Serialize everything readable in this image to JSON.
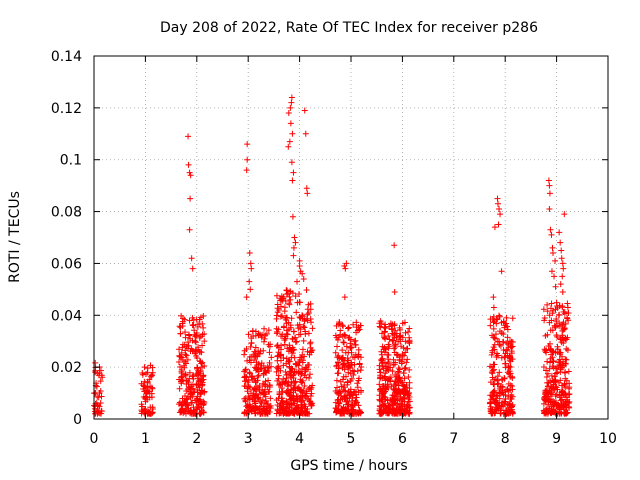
{
  "chart_data": {
    "type": "scatter",
    "title": "Day 208 of 2022, Rate Of TEC Index for receiver p286",
    "xlabel": "GPS time / hours",
    "ylabel": "ROTI / TECUs",
    "xlim": [
      0,
      10
    ],
    "ylim": [
      0,
      0.14
    ],
    "x_ticks": [
      0,
      1,
      2,
      3,
      4,
      5,
      6,
      7,
      8,
      9,
      10
    ],
    "y_ticks": [
      0,
      0.02,
      0.04,
      0.06,
      0.08,
      0.1,
      0.12,
      0.14
    ],
    "y_tick_labels": [
      "0",
      "0.02",
      "0.04",
      "0.06",
      "0.08",
      "0.1",
      "0.12",
      "0.14"
    ],
    "grid": true,
    "marker": "+",
    "color": "#ff0000",
    "clusters": [
      {
        "x_start": 0.0,
        "x_end": 0.18,
        "y_max": 0.022,
        "density": 45
      },
      {
        "x_start": 0.92,
        "x_end": 1.15,
        "y_max": 0.021,
        "density": 70
      },
      {
        "x_start": 1.65,
        "x_end": 2.15,
        "y_max": 0.04,
        "density": 260
      },
      {
        "x_start": 2.92,
        "x_end": 3.45,
        "y_max": 0.035,
        "density": 230
      },
      {
        "x_start": 3.55,
        "x_end": 4.25,
        "y_max": 0.05,
        "density": 420
      },
      {
        "x_start": 4.7,
        "x_end": 5.2,
        "y_max": 0.038,
        "density": 240
      },
      {
        "x_start": 5.55,
        "x_end": 6.15,
        "y_max": 0.038,
        "density": 380
      },
      {
        "x_start": 7.7,
        "x_end": 8.15,
        "y_max": 0.04,
        "density": 230
      },
      {
        "x_start": 8.75,
        "x_end": 9.25,
        "y_max": 0.045,
        "density": 300
      }
    ],
    "outliers": [
      {
        "x": 1.83,
        "y": 0.109
      },
      {
        "x": 1.84,
        "y": 0.098
      },
      {
        "x": 1.86,
        "y": 0.095
      },
      {
        "x": 1.88,
        "y": 0.094
      },
      {
        "x": 1.87,
        "y": 0.085
      },
      {
        "x": 1.86,
        "y": 0.073
      },
      {
        "x": 1.9,
        "y": 0.062
      },
      {
        "x": 1.92,
        "y": 0.058
      },
      {
        "x": 2.98,
        "y": 0.106
      },
      {
        "x": 2.98,
        "y": 0.1
      },
      {
        "x": 2.97,
        "y": 0.096
      },
      {
        "x": 3.03,
        "y": 0.064
      },
      {
        "x": 3.05,
        "y": 0.06
      },
      {
        "x": 3.06,
        "y": 0.058
      },
      {
        "x": 3.02,
        "y": 0.053
      },
      {
        "x": 3.04,
        "y": 0.05
      },
      {
        "x": 2.97,
        "y": 0.047
      },
      {
        "x": 3.85,
        "y": 0.124
      },
      {
        "x": 3.84,
        "y": 0.122
      },
      {
        "x": 3.82,
        "y": 0.12
      },
      {
        "x": 3.79,
        "y": 0.118
      },
      {
        "x": 3.83,
        "y": 0.114
      },
      {
        "x": 3.86,
        "y": 0.11
      },
      {
        "x": 3.81,
        "y": 0.107
      },
      {
        "x": 3.78,
        "y": 0.105
      },
      {
        "x": 3.85,
        "y": 0.099
      },
      {
        "x": 3.88,
        "y": 0.095
      },
      {
        "x": 3.86,
        "y": 0.092
      },
      {
        "x": 4.1,
        "y": 0.119
      },
      {
        "x": 4.12,
        "y": 0.11
      },
      {
        "x": 4.14,
        "y": 0.089
      },
      {
        "x": 4.15,
        "y": 0.087
      },
      {
        "x": 3.87,
        "y": 0.078
      },
      {
        "x": 3.9,
        "y": 0.07
      },
      {
        "x": 3.92,
        "y": 0.068
      },
      {
        "x": 3.89,
        "y": 0.066
      },
      {
        "x": 3.88,
        "y": 0.063
      },
      {
        "x": 4.0,
        "y": 0.061
      },
      {
        "x": 4.02,
        "y": 0.057
      },
      {
        "x": 4.05,
        "y": 0.056
      },
      {
        "x": 4.08,
        "y": 0.054
      },
      {
        "x": 4.0,
        "y": 0.059
      },
      {
        "x": 3.95,
        "y": 0.053
      },
      {
        "x": 4.87,
        "y": 0.059
      },
      {
        "x": 4.89,
        "y": 0.058
      },
      {
        "x": 4.91,
        "y": 0.06
      },
      {
        "x": 4.88,
        "y": 0.047
      },
      {
        "x": 5.84,
        "y": 0.067
      },
      {
        "x": 5.85,
        "y": 0.049
      },
      {
        "x": 7.77,
        "y": 0.047
      },
      {
        "x": 7.8,
        "y": 0.074
      },
      {
        "x": 7.85,
        "y": 0.085
      },
      {
        "x": 7.86,
        "y": 0.083
      },
      {
        "x": 7.88,
        "y": 0.081
      },
      {
        "x": 7.9,
        "y": 0.079
      },
      {
        "x": 7.87,
        "y": 0.075
      },
      {
        "x": 7.93,
        "y": 0.057
      },
      {
        "x": 7.78,
        "y": 0.043
      },
      {
        "x": 8.85,
        "y": 0.092
      },
      {
        "x": 8.86,
        "y": 0.09
      },
      {
        "x": 8.87,
        "y": 0.087
      },
      {
        "x": 8.86,
        "y": 0.081
      },
      {
        "x": 8.88,
        "y": 0.073
      },
      {
        "x": 8.9,
        "y": 0.071
      },
      {
        "x": 8.92,
        "y": 0.066
      },
      {
        "x": 8.93,
        "y": 0.064
      },
      {
        "x": 8.97,
        "y": 0.061
      },
      {
        "x": 8.91,
        "y": 0.057
      },
      {
        "x": 8.95,
        "y": 0.055
      },
      {
        "x": 8.98,
        "y": 0.051
      },
      {
        "x": 9.05,
        "y": 0.072
      },
      {
        "x": 9.07,
        "y": 0.068
      },
      {
        "x": 9.09,
        "y": 0.065
      },
      {
        "x": 9.1,
        "y": 0.062
      },
      {
        "x": 9.12,
        "y": 0.06
      },
      {
        "x": 9.15,
        "y": 0.079
      },
      {
        "x": 9.13,
        "y": 0.058
      },
      {
        "x": 9.11,
        "y": 0.055
      },
      {
        "x": 9.08,
        "y": 0.052
      },
      {
        "x": 9.12,
        "y": 0.049
      }
    ]
  }
}
